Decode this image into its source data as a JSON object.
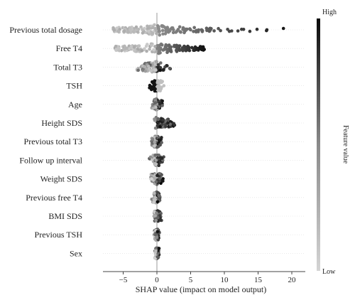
{
  "chart_data": {
    "type": "scatter",
    "subtype": "shap-beeswarm-summary",
    "xlabel": "SHAP value (impact on model output)",
    "colorbar": {
      "label": "Feature value",
      "high": "High",
      "low": "Low",
      "low_color": "#d0d0d0",
      "high_color": "#0a0a0a"
    },
    "xlim": [
      -8,
      22
    ],
    "xticks": [
      "−5",
      "0",
      "5",
      "10",
      "15",
      "20"
    ],
    "xtick_values": [
      -5,
      0,
      5,
      10,
      15,
      20
    ],
    "zero_line": true,
    "features": [
      {
        "name": "Previous total dosage",
        "min": -6.5,
        "max": 21,
        "spread": "wide-right-tail"
      },
      {
        "name": "Free T4",
        "min": -6.2,
        "max": 7.3,
        "spread": "wide"
      },
      {
        "name": "Total T3",
        "min": -3.8,
        "max": 2.6,
        "spread": "medium"
      },
      {
        "name": "TSH",
        "min": -1.3,
        "max": 1.2,
        "spread": "narrow"
      },
      {
        "name": "Age",
        "min": -1.2,
        "max": 1.1,
        "spread": "narrow"
      },
      {
        "name": "Height SDS",
        "min": -1.2,
        "max": 3.2,
        "spread": "narrow"
      },
      {
        "name": "Previous total T3",
        "min": -1.3,
        "max": 1.0,
        "spread": "narrow"
      },
      {
        "name": "Follow up interval",
        "min": -1.3,
        "max": 1.2,
        "spread": "narrow"
      },
      {
        "name": "Weight SDS",
        "min": -1.4,
        "max": 1.4,
        "spread": "narrow"
      },
      {
        "name": "Previous free T4",
        "min": -0.9,
        "max": 0.8,
        "spread": "narrow"
      },
      {
        "name": "BMI SDS",
        "min": -0.7,
        "max": 0.9,
        "spread": "narrow"
      },
      {
        "name": "Previous TSH",
        "min": -0.6,
        "max": 0.5,
        "spread": "narrow"
      },
      {
        "name": "Sex",
        "min": -0.4,
        "max": 0.4,
        "spread": "narrow"
      }
    ]
  }
}
